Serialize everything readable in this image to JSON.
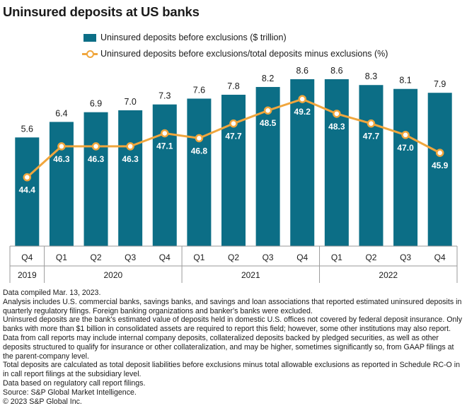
{
  "title": "Uninsured deposits at US banks",
  "legend": {
    "bar_label": "Uninsured deposits before exclusions ($ trillion)",
    "line_label": "Uninsured deposits before exclusions/total deposits minus exclusions (%)"
  },
  "colors": {
    "bar": "#0c6e86",
    "line": "#f0a63d",
    "axis": "#9a9a9a"
  },
  "chart_data": {
    "type": "bar",
    "title": "Uninsured deposits at US banks",
    "categories": [
      "Q4 2019",
      "Q1 2020",
      "Q2 2020",
      "Q3 2020",
      "Q4 2020",
      "Q1 2021",
      "Q2 2021",
      "Q3 2021",
      "Q4 2021",
      "Q1 2022",
      "Q2 2022",
      "Q3 2022",
      "Q4 2022"
    ],
    "quarter_labels": [
      "Q4",
      "Q1",
      "Q2",
      "Q3",
      "Q4",
      "Q1",
      "Q2",
      "Q3",
      "Q4",
      "Q1",
      "Q2",
      "Q3",
      "Q4"
    ],
    "year_groups": [
      {
        "label": "2019",
        "count": 1
      },
      {
        "label": "2020",
        "count": 4
      },
      {
        "label": "2021",
        "count": 4
      },
      {
        "label": "2022",
        "count": 4
      }
    ],
    "series": [
      {
        "name": "Uninsured deposits before exclusions ($ trillion)",
        "type": "bar",
        "values": [
          5.6,
          6.4,
          6.9,
          7.0,
          7.3,
          7.6,
          7.8,
          8.2,
          8.6,
          8.6,
          8.3,
          8.1,
          7.9
        ],
        "labels": [
          "5.6",
          "6.4",
          "6.9",
          "7.0",
          "7.3",
          "7.6",
          "7.8",
          "8.2",
          "8.6",
          "8.6",
          "8.3",
          "8.1",
          "7.9"
        ]
      },
      {
        "name": "Uninsured deposits before exclusions/total deposits minus exclusions (%)",
        "type": "line",
        "values": [
          44.4,
          46.3,
          46.3,
          46.3,
          47.1,
          46.8,
          47.7,
          48.5,
          49.2,
          48.3,
          47.7,
          47.0,
          45.9
        ],
        "labels": [
          "44.4",
          "46.3",
          "46.3",
          "46.3",
          "47.1",
          "46.8",
          "47.7",
          "48.5",
          "49.2",
          "48.3",
          "47.7",
          "47.0",
          "45.9"
        ]
      }
    ],
    "ylim_bar": [
      0,
      8.6
    ],
    "ylim_line": [
      43.3,
      49.9
    ],
    "grid": false,
    "legend_position": "top"
  },
  "notes": [
    "Data compiled Mar. 13, 2023.",
    "Analysis includes U.S. commercial banks, savings banks, and savings and loan associations that reported estimated uninsured deposits in quarterly regulatory filings. Foreign banking organizations and banker's banks were excluded.",
    "Uninsured deposits are the bank's estimated value of deposits held in domestic U.S. offices not covered by federal deposit insurance. Only banks with more than $1 billion in consolidated assets are required to report this field; however, some other institutions may also report. Data from call reports may include internal company deposits, collateralized deposits backed by pledged securities, as well as other deposits structured to qualify for insurance or other collateralization, and may be higher, sometimes significantly so, from GAAP filings at the parent-company level.",
    "Total deposits are calculated as total deposit liabilities before exclusions minus total allowable exclusions as reported in Schedule RC-O in in call report filings at the subsidiary level.",
    "Data based on regulatory call report filings.",
    "Source: S&P Global Market Intelligence.",
    "© 2023 S&P Global Inc."
  ]
}
